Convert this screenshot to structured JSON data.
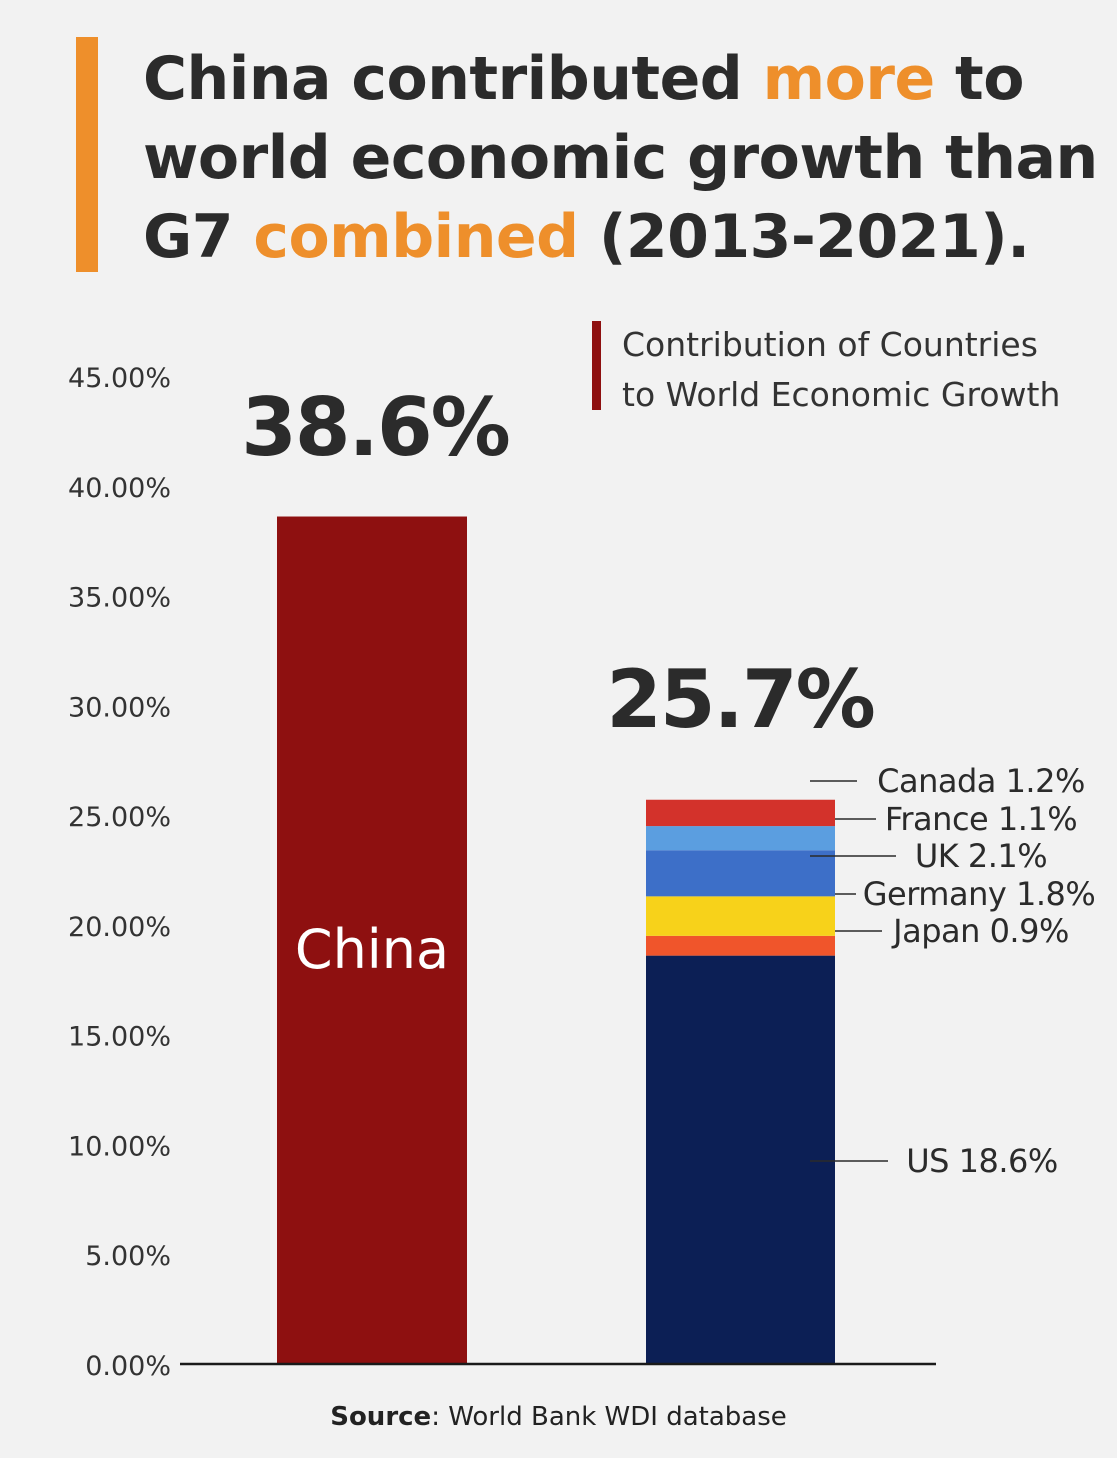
{
  "title": {
    "part1": "China contributed ",
    "highlight1": "more",
    "part2": " to world economic growth than G7 ",
    "highlight2": "combined",
    "part3": " (2013-2021)."
  },
  "legend": {
    "line1": "Contribution of Countries",
    "line2": "to World Economic Growth"
  },
  "source": {
    "label": "Source",
    "text": ": World Bank WDI database"
  },
  "colors": {
    "accent": "#ee8f2b",
    "china": "#8e1010",
    "us": "#0c1f55",
    "japan": "#f0552b",
    "germany": "#f7d21a",
    "uk": "#3d6fc8",
    "france": "#5b9ee0",
    "canada": "#d3322b"
  },
  "chart_data": {
    "type": "bar",
    "ylim": [
      0,
      45
    ],
    "yticks": [
      "0.00%",
      "5.00%",
      "10.00%",
      "15.00%",
      "20.00%",
      "25.00%",
      "30.00%",
      "35.00%",
      "40.00%",
      "45.00%"
    ],
    "yvalues": [
      0,
      5,
      10,
      15,
      20,
      25,
      30,
      35,
      40,
      45
    ],
    "grid": false,
    "bars": [
      {
        "category": "China",
        "total_label": "38.6%",
        "segments": [
          {
            "name": "China",
            "value": 38.6,
            "color": "#8e1010"
          }
        ]
      },
      {
        "category": "",
        "total_label": "25.7%",
        "segments": [
          {
            "name": "US",
            "value": 18.6,
            "label": "US 18.6%",
            "color": "#0c1f55"
          },
          {
            "name": "Japan",
            "value": 0.9,
            "label": "Japan 0.9%",
            "color": "#f0552b"
          },
          {
            "name": "Germany",
            "value": 1.8,
            "label": "Germany 1.8%",
            "color": "#f7d21a"
          },
          {
            "name": "UK",
            "value": 2.1,
            "label": "UK 2.1%",
            "color": "#3d6fc8"
          },
          {
            "name": "France",
            "value": 1.1,
            "label": "France 1.1%",
            "color": "#5b9ee0"
          },
          {
            "name": "Canada",
            "value": 1.2,
            "label": "Canada 1.2%",
            "color": "#d3322b"
          }
        ]
      }
    ]
  }
}
